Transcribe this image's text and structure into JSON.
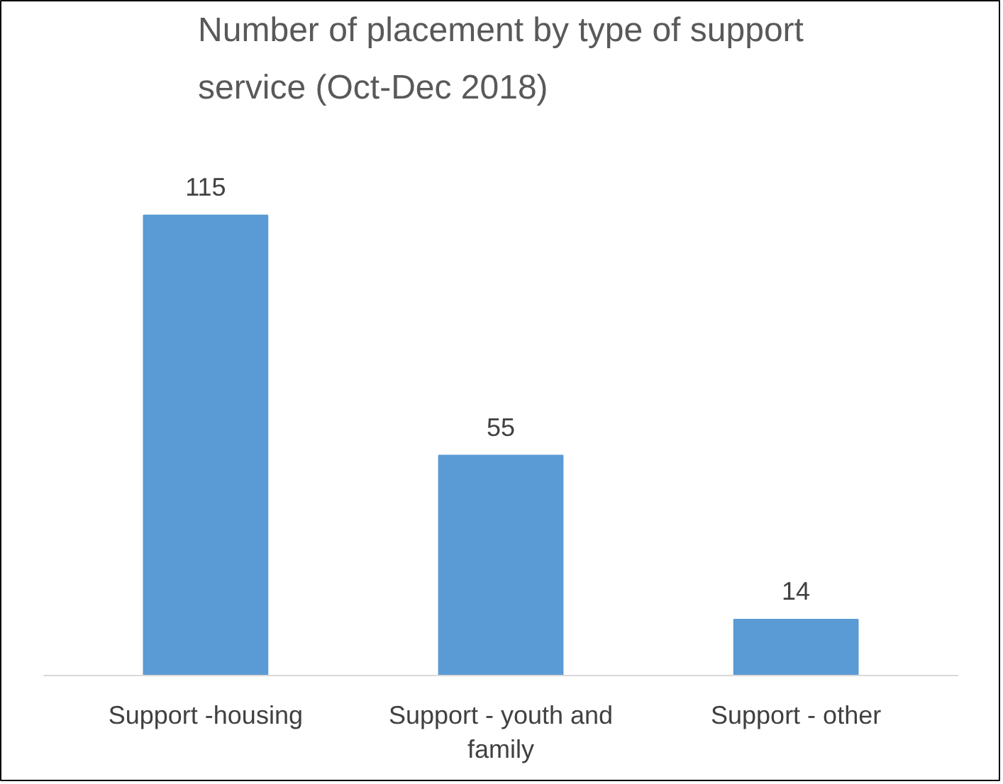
{
  "chart_data": {
    "type": "bar",
    "title": "Number of placement by type of support service (Oct-Dec 2018)",
    "categories": [
      "Support -housing",
      "Support - youth and family",
      "Support - other"
    ],
    "values": [
      115,
      55,
      14
    ],
    "color": "#5b9bd5",
    "data_labels": true
  }
}
